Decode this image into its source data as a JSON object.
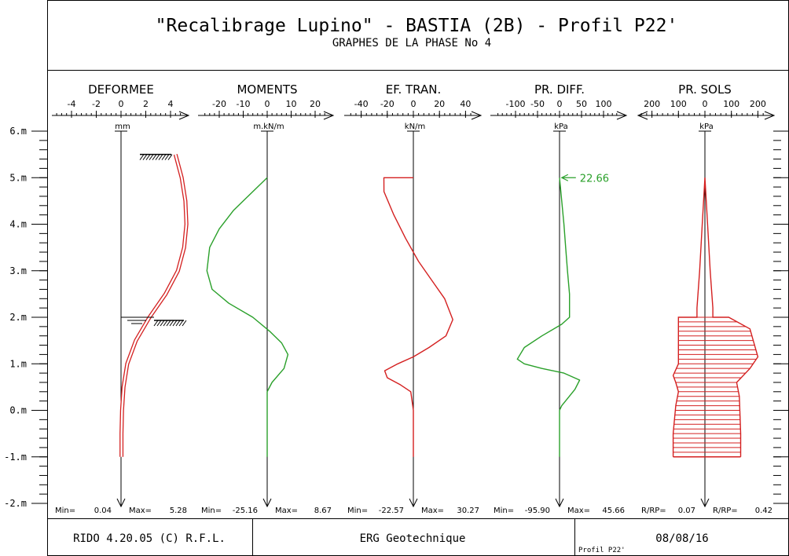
{
  "header": {
    "title": "\"Recalibrage Lupino\" - BASTIA (2B) - Profil P22'",
    "subtitle": "GRAPHES DE LA PHASE No  4"
  },
  "depth_axis": {
    "labels": [
      "6.m",
      "5.m",
      "4.m",
      "3.m",
      "2.m",
      "1.m",
      "0.m",
      "-1.m",
      "-2.m"
    ],
    "values": [
      6,
      5,
      4,
      3,
      2,
      1,
      0,
      -1,
      -2
    ]
  },
  "chart_data": [
    {
      "type": "line",
      "title": "DEFORMEE",
      "unit": "mm",
      "x_ticks": [
        -4,
        -2,
        0,
        2,
        4
      ],
      "xlim": [
        -5.2,
        6.0
      ],
      "ylim": [
        -2,
        6
      ],
      "color": "#d42020",
      "double_line": true,
      "series": [
        {
          "x": [
            4.4,
            4.9,
            5.2,
            5.28,
            5.1,
            4.6,
            3.6,
            2.3,
            1.2,
            0.5,
            0.2,
            0.08,
            0.04,
            0.04
          ],
          "y": [
            5.5,
            5.0,
            4.5,
            4.0,
            3.5,
            3.0,
            2.5,
            2.0,
            1.5,
            1.0,
            0.5,
            0.0,
            -0.5,
            -1.0
          ]
        }
      ],
      "min_label": "Min=",
      "min_value": "0.04",
      "max_label": "Max=",
      "max_value": "5.28"
    },
    {
      "type": "line",
      "title": "MOMENTS",
      "unit": "m.kN/m",
      "x_ticks": [
        -20,
        -10,
        0,
        10,
        20
      ],
      "xlim": [
        -27.5,
        27
      ],
      "ylim": [
        -2,
        6
      ],
      "color": "#2aa02a",
      "series": [
        {
          "x": [
            0,
            -6,
            -14,
            -20,
            -24,
            -25.16,
            -23,
            -16,
            -6,
            1,
            6,
            8.67,
            7,
            2,
            0,
            0
          ],
          "y": [
            5.0,
            4.7,
            4.3,
            3.9,
            3.5,
            3.0,
            2.6,
            2.3,
            2.0,
            1.7,
            1.45,
            1.2,
            0.9,
            0.6,
            0.4,
            -1.0
          ]
        }
      ],
      "min_label": "Min=",
      "min_value": "-25.16",
      "max_label": "Max=",
      "max_value": "8.67"
    },
    {
      "type": "line",
      "title": "EF. TRAN.",
      "unit": "kN/m",
      "x_ticks": [
        -40,
        -20,
        0,
        20,
        40
      ],
      "xlim": [
        -47,
        48
      ],
      "ylim": [
        -2,
        6
      ],
      "color": "#d42020",
      "series": [
        {
          "x": [
            0,
            -22.57,
            -22.5,
            -15,
            -6,
            4,
            14,
            24,
            30.27,
            25,
            12,
            0,
            -12,
            -22,
            -20,
            -10,
            -2,
            0,
            0
          ],
          "y": [
            5.0,
            5.0,
            4.7,
            4.2,
            3.7,
            3.2,
            2.8,
            2.4,
            1.95,
            1.6,
            1.35,
            1.15,
            1.0,
            0.85,
            0.7,
            0.55,
            0.4,
            0.0,
            -1.0
          ]
        }
      ],
      "min_label": "Min=",
      "min_value": "-22.57",
      "max_label": "Max=",
      "max_value": "30.27"
    },
    {
      "type": "line",
      "title": "PR. DIFF.",
      "unit": "kPa",
      "x_ticks": [
        -100,
        -50,
        0,
        50,
        100
      ],
      "xlim": [
        -115,
        150
      ],
      "ylim": [
        -2,
        6
      ],
      "color": "#2aa02a",
      "series": [
        {
          "x": [
            0,
            5,
            10,
            14,
            18,
            22.66,
            22.66,
            5,
            -40,
            -80,
            -95.9,
            -80,
            -40,
            10,
            45.66,
            35,
            5,
            0,
            0
          ],
          "y": [
            5.0,
            4.5,
            4.0,
            3.5,
            3.0,
            2.5,
            2.0,
            1.85,
            1.6,
            1.35,
            1.1,
            1.0,
            0.9,
            0.8,
            0.65,
            0.45,
            0.1,
            0.0,
            -1.0
          ]
        }
      ],
      "annotation": {
        "text": "22.66",
        "y": 5.0
      },
      "min_label": "Min=",
      "min_value": "-95.90",
      "max_label": "Max=",
      "max_value": "45.66"
    },
    {
      "type": "area",
      "title": "PR. SOLS",
      "unit": "kPa",
      "x_ticks": [
        200,
        100,
        0,
        100,
        200
      ],
      "xlim": [
        -250,
        260
      ],
      "ylim": [
        -2,
        6
      ],
      "color": "#d42020",
      "series": [
        {
          "name": "left",
          "x": [
            0,
            -10,
            -20,
            -30,
            -30,
            -100,
            -100,
            -120,
            -110,
            -100,
            -110,
            -120,
            -120
          ],
          "y": [
            5.0,
            4.0,
            3.0,
            2.2,
            2.0,
            2.0,
            1.0,
            0.75,
            0.6,
            0.4,
            0.1,
            -0.5,
            -1.0
          ]
        },
        {
          "name": "right",
          "x": [
            0,
            10,
            20,
            30,
            30,
            90,
            170,
            200,
            170,
            120,
            130,
            135,
            135
          ],
          "y": [
            5.0,
            4.0,
            3.0,
            2.2,
            2.0,
            2.0,
            1.75,
            1.15,
            0.9,
            0.6,
            0.3,
            -0.5,
            -1.0
          ]
        }
      ],
      "min_label": "R/RP=",
      "min_value": "0.07",
      "max_label": "R/RP=",
      "max_value": "0.42"
    }
  ],
  "footer": {
    "software": "RIDO  4.20.05 (C) R.F.L.",
    "company": "ERG Geotechnique",
    "profile": "Profil P22'",
    "date": "08/08/16"
  }
}
